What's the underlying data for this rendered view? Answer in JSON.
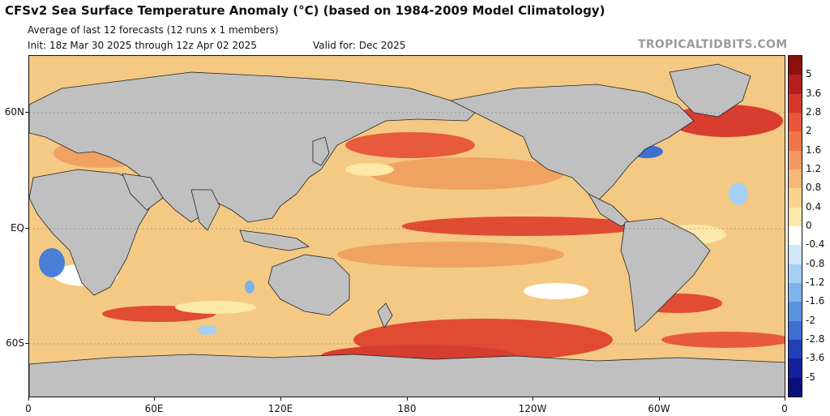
{
  "header": {
    "title": "CFSv2 Sea Surface Temperature Anomaly (°C) (based on 1984-2009 Model Climatology)",
    "subtitle": "Average of last 12 forecasts (12 runs x 1 members)",
    "init": "Init: 18z Mar 30 2025 through 12z Apr 02 2025",
    "valid": "Valid for: Dec 2025",
    "brand": "TROPICALTIDBITS.COM"
  },
  "axes": {
    "y_labels": [
      "60N",
      "EQ",
      "60S"
    ],
    "x_labels": [
      "0",
      "60E",
      "120E",
      "180",
      "120W",
      "60W",
      "0"
    ]
  },
  "colorbar": {
    "labels": [
      "5",
      "3.6",
      "2.8",
      "2",
      "1.6",
      "1.2",
      "0.8",
      "0.4",
      "0",
      "-0.4",
      "-0.8",
      "-1.2",
      "-1.6",
      "-2",
      "-2.8",
      "-3.6",
      "-5"
    ],
    "colors": [
      "#8e0f0f",
      "#b31f1f",
      "#d6362a",
      "#e85539",
      "#f0764a",
      "#f49960",
      "#f7b877",
      "#f9d38e",
      "#fce8a8",
      "#ffffff",
      "#cfe6fb",
      "#a6cff5",
      "#7fb3ec",
      "#5a93e0",
      "#3b6fd2",
      "#233fb8",
      "#14209c",
      "#0b0f7e"
    ]
  },
  "colors": {
    "land": "#c0c0c0",
    "ocean_base": "#f3c57a",
    "warm": "#e0452f",
    "cool": "#4a7fd6"
  }
}
